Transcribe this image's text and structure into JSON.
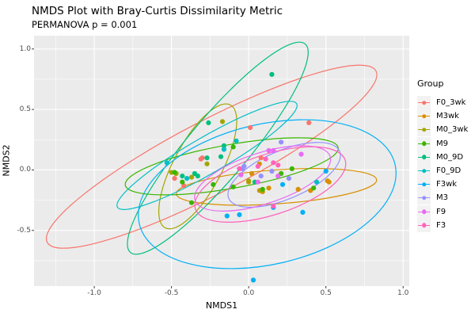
{
  "title": "NMDS Plot with Bray-Curtis Dissimilarity Metric",
  "subtitle": "PERMANOVA p = 0.001",
  "axes": {
    "x_title": "NMDS1",
    "y_title": "NMDS2"
  },
  "legend": {
    "title": "Group"
  },
  "colors": {
    "panel_background": "#EBEBEB",
    "gridline": "#FFFFFF",
    "tick_text": "#4D4D4D"
  },
  "chart_data": {
    "type": "scatter",
    "title": "NMDS Plot with Bray-Curtis Dissimilarity Metric",
    "subtitle": "PERMANOVA p = 0.001",
    "xlabel": "NMDS1",
    "ylabel": "NMDS2",
    "xlim": [
      -1.39,
      1.04
    ],
    "ylim": [
      -0.96,
      1.11
    ],
    "x_ticks": [
      -1.0,
      -0.5,
      0.0,
      0.5,
      1.0
    ],
    "x_tick_labels": [
      "-1.0",
      "-0.5",
      "0.0",
      "0.5",
      "1.0"
    ],
    "y_ticks": [
      1.0,
      0.5,
      0.0,
      -0.5
    ],
    "y_tick_labels": [
      "1.0",
      "0.5",
      "0.0",
      "-0.5"
    ],
    "x_minor_ticks": [
      -1.25,
      -0.75,
      -0.25,
      0.25,
      0.75
    ],
    "y_minor_ticks": [
      0.75,
      0.25,
      -0.25,
      -0.75
    ],
    "grid": true,
    "legend_title": "Group",
    "legend_position": "right",
    "groups": [
      {
        "name": "F0_3wk",
        "color": "#F8766D",
        "points": [
          [
            0.01,
            0.35
          ],
          [
            0.39,
            0.39
          ],
          [
            -0.31,
            0.09
          ],
          [
            -0.48,
            -0.07
          ],
          [
            -0.42,
            -0.13
          ],
          [
            -0.3,
            0.1
          ],
          [
            0.08,
            0.1
          ]
        ],
        "ellipse": {
          "cx": -0.24,
          "cy": 0.11,
          "rx": 1.2,
          "ry": 0.3,
          "angle_deg": -27.5
        }
      },
      {
        "name": "M3wk",
        "color": "#D89000",
        "points": [
          [
            0.07,
            0.05
          ],
          [
            0.0,
            -0.1
          ],
          [
            0.07,
            -0.17
          ],
          [
            0.09,
            -0.18
          ],
          [
            0.13,
            -0.15
          ],
          [
            0.32,
            -0.16
          ],
          [
            0.4,
            -0.17
          ],
          [
            0.51,
            -0.09
          ],
          [
            0.52,
            -0.1
          ],
          [
            0.02,
            -0.03
          ]
        ],
        "ellipse": {
          "cx": 0.18,
          "cy": -0.14,
          "rx": 0.65,
          "ry": 0.14,
          "angle_deg": -4
        }
      },
      {
        "name": "M0_3wk",
        "color": "#A3A500",
        "points": [
          [
            -0.17,
            0.4
          ],
          [
            -0.5,
            -0.02
          ],
          [
            -0.47,
            -0.03
          ],
          [
            -0.37,
            -0.06
          ],
          [
            -0.27,
            0.05
          ],
          [
            0.0,
            -0.09
          ],
          [
            0.08,
            -0.17
          ]
        ],
        "ellipse": {
          "cx": -0.33,
          "cy": 0.03,
          "rx": 0.45,
          "ry": 0.2,
          "angle_deg": -62
        }
      },
      {
        "name": "M9",
        "color": "#39B600",
        "points": [
          [
            -0.1,
            0.19
          ],
          [
            -0.48,
            -0.02
          ],
          [
            -0.43,
            -0.1
          ],
          [
            -0.23,
            -0.12
          ],
          [
            0.28,
            0.01
          ],
          [
            0.42,
            -0.15
          ],
          [
            -0.37,
            -0.27
          ],
          [
            0.21,
            -0.03
          ],
          [
            -0.1,
            -0.14
          ],
          [
            0.09,
            -0.16
          ]
        ],
        "ellipse": {
          "cx": -0.11,
          "cy": 0.03,
          "rx": 0.7,
          "ry": 0.18,
          "angle_deg": -10
        }
      },
      {
        "name": "M0_9D",
        "color": "#00BF7D",
        "points": [
          [
            0.15,
            0.79
          ],
          [
            -0.26,
            0.39
          ],
          [
            -0.16,
            0.2
          ],
          [
            -0.18,
            0.11
          ],
          [
            -0.43,
            -0.05
          ],
          [
            -0.33,
            -0.05
          ],
          [
            -0.27,
            0.1
          ],
          [
            0.04,
            -0.1
          ],
          [
            -0.35,
            -0.03
          ]
        ],
        "ellipse": {
          "cx": -0.2,
          "cy": 0.18,
          "rx": 0.88,
          "ry": 0.25,
          "angle_deg": -50
        }
      },
      {
        "name": "F0_9D",
        "color": "#00BFC4",
        "points": [
          [
            -0.53,
            0.06
          ],
          [
            -0.08,
            0.24
          ],
          [
            -0.16,
            0.17
          ],
          [
            0.44,
            -0.1
          ],
          [
            -0.4,
            -0.07
          ]
        ],
        "ellipse": {
          "cx": -0.27,
          "cy": 0.12,
          "rx": 0.67,
          "ry": 0.15,
          "angle_deg": -30
        }
      },
      {
        "name": "F3wk",
        "color": "#00B0F6",
        "points": [
          [
            -0.14,
            -0.38
          ],
          [
            -0.06,
            -0.37
          ],
          [
            0.16,
            -0.31
          ],
          [
            0.35,
            -0.35
          ],
          [
            0.03,
            -0.91
          ],
          [
            0.5,
            -0.01
          ],
          [
            0.22,
            -0.12
          ]
        ],
        "ellipse": {
          "cx": 0.12,
          "cy": -0.2,
          "rx": 0.85,
          "ry": 0.58,
          "angle_deg": -13
        }
      },
      {
        "name": "M3",
        "color": "#9590FF",
        "points": [
          [
            0.21,
            0.23
          ],
          [
            -0.04,
            0.01
          ],
          [
            0.15,
            -0.01
          ],
          [
            0.08,
            -0.05
          ],
          [
            0.26,
            -0.07
          ],
          [
            -0.03,
            0.03
          ]
        ],
        "ellipse": {
          "cx": 0.23,
          "cy": -0.04,
          "rx": 0.39,
          "ry": 0.2,
          "angle_deg": -23
        }
      },
      {
        "name": "F9",
        "color": "#E76BF3",
        "points": [
          [
            0.13,
            0.16
          ],
          [
            0.16,
            0.16
          ],
          [
            0.19,
            -0.05
          ],
          [
            0.06,
            -0.1
          ],
          [
            0.34,
            0.13
          ],
          [
            -0.05,
            -0.04
          ]
        ],
        "ellipse": {
          "cx": 0.09,
          "cy": -0.07,
          "rx": 0.46,
          "ry": 0.21,
          "angle_deg": -18
        }
      },
      {
        "name": "F3",
        "color": "#FF62BC",
        "points": [
          [
            0.16,
            0.06
          ],
          [
            0.19,
            0.04
          ],
          [
            -0.06,
            0.01
          ],
          [
            0.16,
            -0.3
          ],
          [
            0.11,
            0.09
          ],
          [
            0.06,
            0.03
          ]
        ],
        "ellipse": {
          "cx": 0.14,
          "cy": -0.12,
          "rx": 0.51,
          "ry": 0.25,
          "angle_deg": -18
        }
      }
    ]
  }
}
